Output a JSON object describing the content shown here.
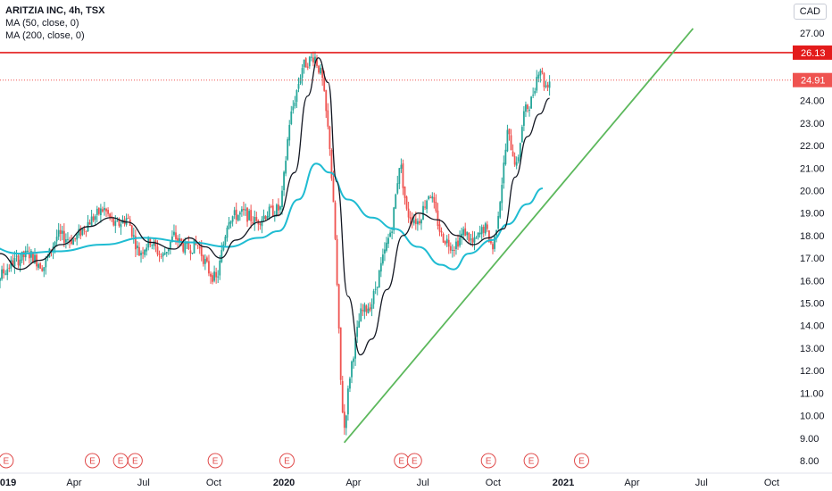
{
  "legend": {
    "title": "ARITZIA INC, 4h, TSX",
    "ma50": "MA (50, close, 0)",
    "ma200": "MA (200, close, 0)"
  },
  "currency": "CAD",
  "chart_data": {
    "type": "candlestick",
    "symbol": "ARITZIA INC",
    "interval": "4h",
    "exchange": "TSX",
    "ylim": [
      7.6,
      27.7
    ],
    "y_ticks": [
      "8.00",
      "9.00",
      "10.00",
      "11.00",
      "12.00",
      "13.00",
      "14.00",
      "15.00",
      "16.00",
      "17.00",
      "18.00",
      "19.00",
      "20.00",
      "21.00",
      "22.00",
      "23.00",
      "24.00",
      "25.00",
      "26.00",
      "27.00"
    ],
    "y_tick_values": [
      8,
      9,
      10,
      11,
      12,
      13,
      14,
      15,
      16,
      17,
      18,
      19,
      20,
      21,
      22,
      23,
      24,
      25,
      26,
      27
    ],
    "x_labels": [
      {
        "label": "2019",
        "date": "2019-01-01",
        "bold": true
      },
      {
        "label": "Apr",
        "date": "2019-04-01",
        "bold": false
      },
      {
        "label": "Jul",
        "date": "2019-07-01",
        "bold": false
      },
      {
        "label": "Oct",
        "date": "2019-10-01",
        "bold": false
      },
      {
        "label": "2020",
        "date": "2020-01-01",
        "bold": true
      },
      {
        "label": "Apr",
        "date": "2020-04-01",
        "bold": false
      },
      {
        "label": "Jul",
        "date": "2020-07-01",
        "bold": false
      },
      {
        "label": "Oct",
        "date": "2020-10-01",
        "bold": false
      },
      {
        "label": "2021",
        "date": "2021-01-01",
        "bold": true
      },
      {
        "label": "Apr",
        "date": "2021-04-01",
        "bold": false
      },
      {
        "label": "Jul",
        "date": "2021-07-01",
        "bold": false
      },
      {
        "label": "Oct",
        "date": "2021-10-01",
        "bold": false
      }
    ],
    "price_path": [
      [
        "2018-12-01",
        17.6
      ],
      [
        "2018-12-20",
        16.0
      ],
      [
        "2019-01-10",
        16.8
      ],
      [
        "2019-02-01",
        17.2
      ],
      [
        "2019-02-20",
        16.6
      ],
      [
        "2019-03-10",
        18.0
      ],
      [
        "2019-04-01",
        17.8
      ],
      [
        "2019-04-20",
        18.6
      ],
      [
        "2019-05-10",
        19.2
      ],
      [
        "2019-05-25",
        18.4
      ],
      [
        "2019-06-10",
        18.8
      ],
      [
        "2019-06-25",
        17.2
      ],
      [
        "2019-07-10",
        17.8
      ],
      [
        "2019-07-25",
        17.0
      ],
      [
        "2019-08-10",
        18.0
      ],
      [
        "2019-08-25",
        17.4
      ],
      [
        "2019-09-10",
        17.6
      ],
      [
        "2019-09-25",
        16.4
      ],
      [
        "2019-10-05",
        16.0
      ],
      [
        "2019-10-20",
        18.8
      ],
      [
        "2019-11-10",
        19.0
      ],
      [
        "2019-11-25",
        18.6
      ],
      [
        "2019-12-10",
        19.0
      ],
      [
        "2019-12-28",
        19.2
      ],
      [
        "2020-01-08",
        23.0
      ],
      [
        "2020-01-25",
        25.5
      ],
      [
        "2020-02-10",
        26.0
      ],
      [
        "2020-02-20",
        25.0
      ],
      [
        "2020-03-01",
        22.0
      ],
      [
        "2020-03-08",
        18.0
      ],
      [
        "2020-03-16",
        11.0
      ],
      [
        "2020-03-20",
        9.4
      ],
      [
        "2020-03-28",
        12.0
      ],
      [
        "2020-04-10",
        14.5
      ],
      [
        "2020-04-25",
        15.0
      ],
      [
        "2020-05-10",
        17.0
      ],
      [
        "2020-05-22",
        18.5
      ],
      [
        "2020-06-01",
        21.4
      ],
      [
        "2020-06-10",
        19.0
      ],
      [
        "2020-06-25",
        18.6
      ],
      [
        "2020-07-10",
        20.0
      ],
      [
        "2020-07-25",
        18.0
      ],
      [
        "2020-08-10",
        17.5
      ],
      [
        "2020-08-25",
        18.2
      ],
      [
        "2020-09-05",
        17.6
      ],
      [
        "2020-09-20",
        18.4
      ],
      [
        "2020-10-01",
        17.4
      ],
      [
        "2020-10-10",
        19.6
      ],
      [
        "2020-10-20",
        22.6
      ],
      [
        "2020-11-01",
        21.0
      ],
      [
        "2020-11-10",
        23.4
      ],
      [
        "2020-11-20",
        24.0
      ],
      [
        "2020-12-01",
        25.6
      ],
      [
        "2020-12-08",
        24.6
      ],
      [
        "2020-12-14",
        24.9
      ]
    ],
    "series": [
      {
        "name": "MA (50, close, 0)",
        "color": "#131722",
        "points": [
          [
            "2018-12-01",
            18.2
          ],
          [
            "2018-12-25",
            17.2
          ],
          [
            "2019-01-20",
            16.5
          ],
          [
            "2019-02-15",
            16.9
          ],
          [
            "2019-03-15",
            17.6
          ],
          [
            "2019-04-20",
            18.4
          ],
          [
            "2019-05-20",
            18.8
          ],
          [
            "2019-06-10",
            18.6
          ],
          [
            "2019-07-10",
            17.7
          ],
          [
            "2019-08-10",
            17.4
          ],
          [
            "2019-08-30",
            17.9
          ],
          [
            "2019-09-20",
            17.5
          ],
          [
            "2019-10-10",
            17.0
          ],
          [
            "2019-10-30",
            17.8
          ],
          [
            "2019-11-30",
            18.6
          ],
          [
            "2019-12-25",
            18.9
          ],
          [
            "2020-01-15",
            20.8
          ],
          [
            "2020-02-01",
            24.2
          ],
          [
            "2020-02-15",
            25.9
          ],
          [
            "2020-02-28",
            24.8
          ],
          [
            "2020-03-10",
            20.4
          ],
          [
            "2020-03-25",
            15.3
          ],
          [
            "2020-04-10",
            12.7
          ],
          [
            "2020-04-25",
            13.4
          ],
          [
            "2020-05-15",
            15.6
          ],
          [
            "2020-06-05",
            18.0
          ],
          [
            "2020-06-25",
            19.0
          ],
          [
            "2020-07-20",
            18.7
          ],
          [
            "2020-08-15",
            18.0
          ],
          [
            "2020-09-05",
            17.6
          ],
          [
            "2020-09-25",
            17.9
          ],
          [
            "2020-10-15",
            18.3
          ],
          [
            "2020-10-30",
            20.6
          ],
          [
            "2020-11-15",
            22.4
          ],
          [
            "2020-12-01",
            23.4
          ],
          [
            "2020-12-14",
            24.1
          ]
        ]
      },
      {
        "name": "MA (200, close, 0)",
        "color": "#1fbcd2",
        "points": [
          [
            "2018-12-01",
            17.6
          ],
          [
            "2019-01-20",
            17.2
          ],
          [
            "2019-03-10",
            17.3
          ],
          [
            "2019-05-10",
            17.6
          ],
          [
            "2019-07-01",
            17.9
          ],
          [
            "2019-09-01",
            17.7
          ],
          [
            "2019-10-20",
            17.5
          ],
          [
            "2019-11-30",
            17.9
          ],
          [
            "2019-12-25",
            18.2
          ],
          [
            "2020-01-20",
            19.6
          ],
          [
            "2020-02-12",
            21.2
          ],
          [
            "2020-03-01",
            20.8
          ],
          [
            "2020-03-25",
            19.6
          ],
          [
            "2020-04-25",
            18.8
          ],
          [
            "2020-05-25",
            18.3
          ],
          [
            "2020-06-25",
            17.5
          ],
          [
            "2020-07-25",
            16.7
          ],
          [
            "2020-08-10",
            16.5
          ],
          [
            "2020-08-30",
            17.2
          ],
          [
            "2020-09-30",
            17.8
          ],
          [
            "2020-10-20",
            18.5
          ],
          [
            "2020-11-15",
            19.4
          ],
          [
            "2020-12-05",
            20.1
          ]
        ]
      }
    ],
    "resistance_level": 26.13,
    "last_price": 24.91,
    "trendline": {
      "start": [
        "2020-03-20",
        8.8
      ],
      "end": [
        "2021-06-20",
        27.2
      ],
      "color": "#5cb85c"
    },
    "event_markers": [
      "2019-01-02",
      "2019-04-25",
      "2019-06-01",
      "2019-06-20",
      "2019-10-03",
      "2020-01-05",
      "2020-06-03",
      "2020-06-20",
      "2020-09-25",
      "2020-11-20",
      "2021-01-25"
    ],
    "event_label": "E"
  }
}
